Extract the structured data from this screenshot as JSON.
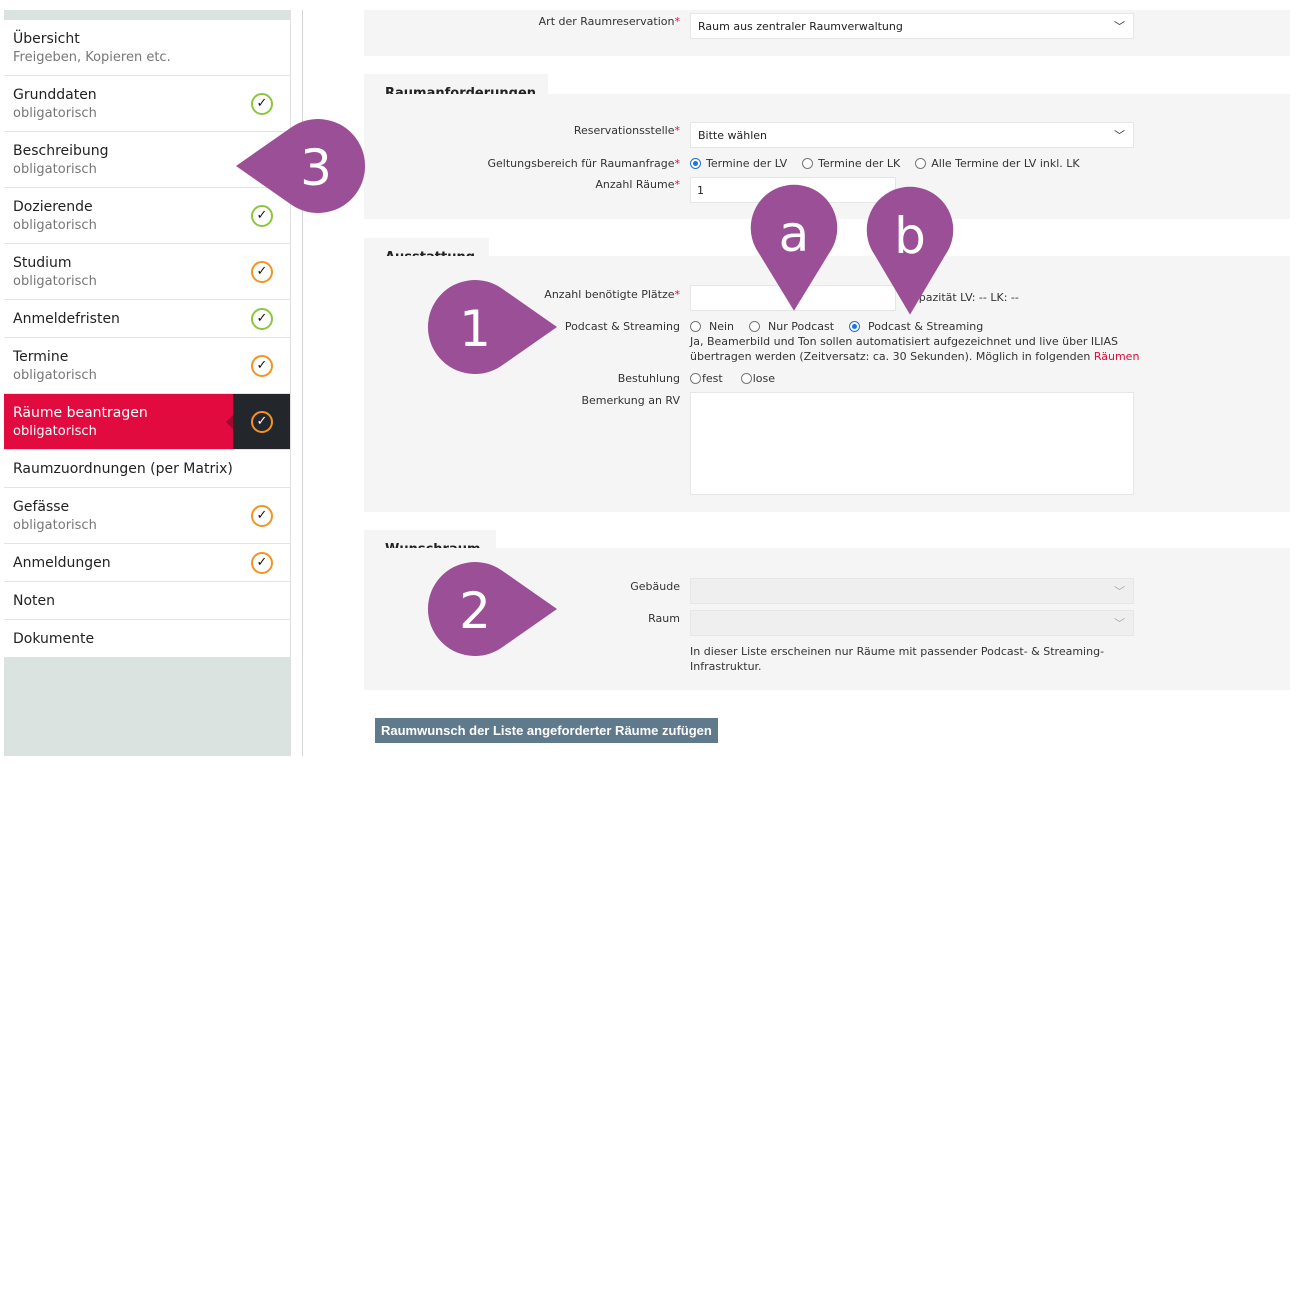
{
  "sidebar": {
    "items": [
      {
        "title": "Übersicht",
        "subtitle": "Freigeben, Kopieren etc.",
        "status": "none"
      },
      {
        "title": "Grunddaten",
        "subtitle": "obligatorisch",
        "status": "green"
      },
      {
        "title": "Beschreibung",
        "subtitle": "obligatorisch",
        "status": "none"
      },
      {
        "title": "Dozierende",
        "subtitle": "obligatorisch",
        "status": "green"
      },
      {
        "title": "Studium",
        "subtitle": "obligatorisch",
        "status": "orange"
      },
      {
        "title": "Anmeldefristen",
        "status": "green"
      },
      {
        "title": "Termine",
        "subtitle": "obligatorisch",
        "status": "orange"
      },
      {
        "title": "Räume beantragen",
        "subtitle": "obligatorisch",
        "status": "orange",
        "active": true
      },
      {
        "title": "Raumzuordnungen (per Matrix)",
        "status": "none"
      },
      {
        "title": "Gefässe",
        "subtitle": "obligatorisch",
        "status": "orange"
      },
      {
        "title": "Anmeldungen",
        "status": "orange"
      },
      {
        "title": "Noten",
        "status": "none"
      },
      {
        "title": "Dokumente",
        "status": "none"
      }
    ],
    "check_glyph": "✓"
  },
  "form": {
    "art": {
      "label": "Art der Raumreservation",
      "required": "*",
      "value": "Raum aus zentraler Raumverwaltung"
    },
    "raumanforderungen": {
      "heading": "Raumanforderungen",
      "reservationsstelle": {
        "label": "Reservationsstelle",
        "required": "*",
        "value": "Bitte wählen"
      },
      "geltungsbereich": {
        "label": "Geltungsbereich für Raumanfrage",
        "required": "*",
        "options": [
          "Termine der LV",
          "Termine der LK",
          "Alle Termine der LV inkl. LK"
        ],
        "selected": 0
      },
      "anzahl_raeume": {
        "label": "Anzahl Räume",
        "required": "*",
        "value": "1"
      }
    },
    "ausstattung": {
      "heading": "Ausstattung",
      "plaetze": {
        "label": "Anzahl benötigte Plätze",
        "required": "*",
        "value": "",
        "capacity": "Kapazität LV: --   LK: --"
      },
      "podcast": {
        "label": "Podcast & Streaming",
        "options": [
          "Nein",
          "Nur Podcast",
          "Podcast & Streaming"
        ],
        "selected": 2,
        "help_line1": "Ja, Beamerbild und Ton sollen automatisiert aufgezeichnet und live über ILIAS",
        "help_line2": "übertragen werden (Zeitversatz: ca. 30 Sekunden). Möglich in folgenden ",
        "help_link": "Räumen"
      },
      "bestuhlung": {
        "label": "Bestuhlung",
        "options": [
          "fest",
          "lose"
        ]
      },
      "bemerkung": {
        "label": "Bemerkung an RV",
        "value": ""
      }
    },
    "wunschraum": {
      "heading": "Wunschraum",
      "gebaeude": {
        "label": "Gebäude",
        "value": ""
      },
      "raum": {
        "label": "Raum",
        "value": ""
      },
      "hint_line1": "In dieser Liste erscheinen nur Räume mit passender Podcast- & Streaming-",
      "hint_line2": "Infrastruktur."
    },
    "add_button": "Raumwunsch der Liste angeforderter Räume zufügen"
  },
  "annotations": {
    "color": "#9b4f96",
    "markers": [
      "3",
      "1",
      "2",
      "a",
      "b"
    ]
  },
  "colors": {
    "active": "#e10b3f",
    "green": "#8cc63f",
    "orange": "#f39323",
    "button": "#5f7a8c"
  }
}
